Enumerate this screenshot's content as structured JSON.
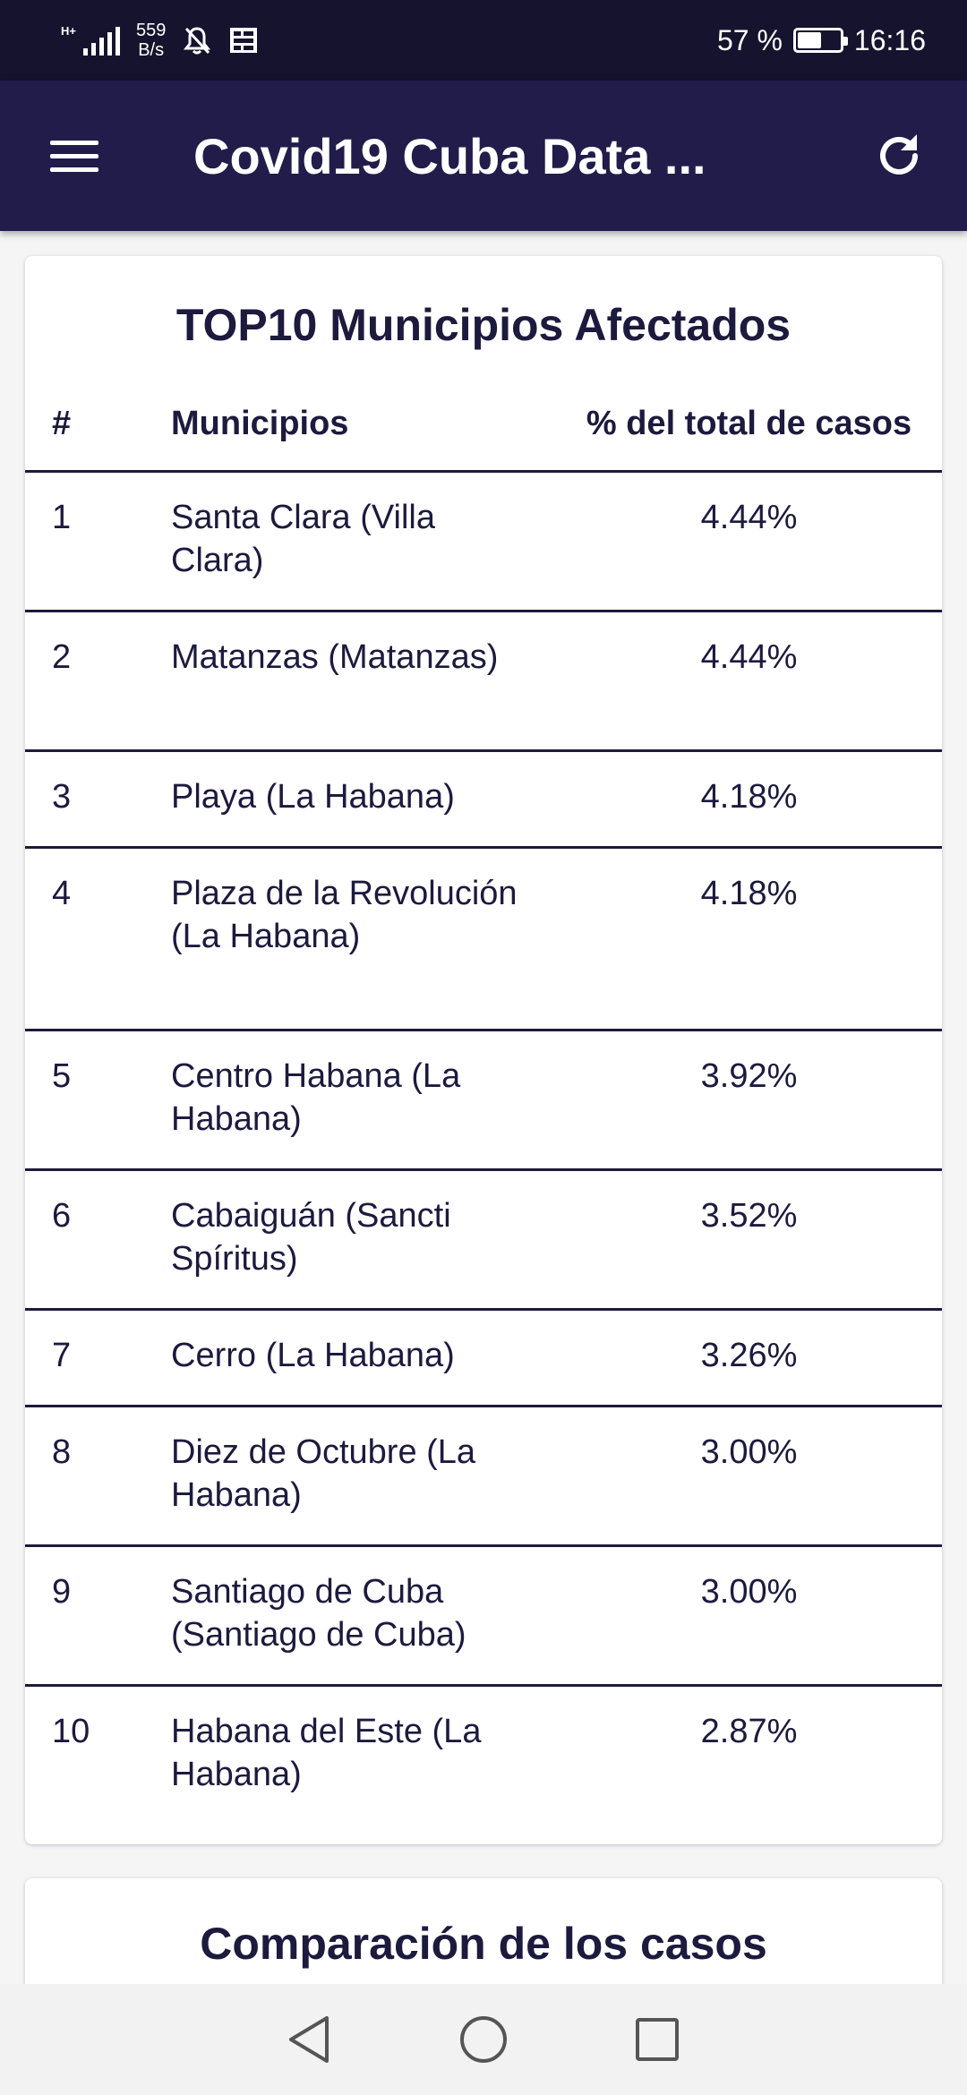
{
  "status_bar": {
    "signal_tag": "H+",
    "net_speed_value": "559",
    "net_speed_unit": "B/s",
    "battery_percent": "57 %",
    "battery_level": 0.57,
    "time": "16:16"
  },
  "app_bar": {
    "title": "Covid19 Cuba Data ...",
    "menu_icon": "hamburger-menu-icon",
    "refresh_icon": "refresh-icon"
  },
  "top10": {
    "title": "TOP10 Municipios Afectados",
    "headers": {
      "num": "#",
      "name": "Municipios",
      "pct": "% del total de casos"
    },
    "rows": [
      {
        "num": "1",
        "name": "Santa Clara (Villa Clara)",
        "pct": "4.44%"
      },
      {
        "num": "2",
        "name": "Matanzas (Matanzas)",
        "pct": "4.44%"
      },
      {
        "num": "3",
        "name": "Playa (La Habana)",
        "pct": "4.18%"
      },
      {
        "num": "4",
        "name": "Plaza de la Revolución (La Habana)",
        "pct": "4.18%"
      },
      {
        "num": "5",
        "name": "Centro Habana (La Habana)",
        "pct": "3.92%"
      },
      {
        "num": "6",
        "name": "Cabaiguán (Sancti Spíritus)",
        "pct": "3.52%"
      },
      {
        "num": "7",
        "name": "Cerro (La Habana)",
        "pct": "3.26%"
      },
      {
        "num": "8",
        "name": "Diez de Octubre (La Habana)",
        "pct": "3.00%"
      },
      {
        "num": "9",
        "name": "Santiago de Cuba (Santiago de Cuba)",
        "pct": "3.00%"
      },
      {
        "num": "10",
        "name": "Habana del Este (La Habana)",
        "pct": "2.87%"
      }
    ]
  },
  "comparison": {
    "title": "Comparación de los casos"
  },
  "colors": {
    "status_bar": "#16132e",
    "app_bar": "#211c4a",
    "text_dark": "#1c1a3d"
  }
}
